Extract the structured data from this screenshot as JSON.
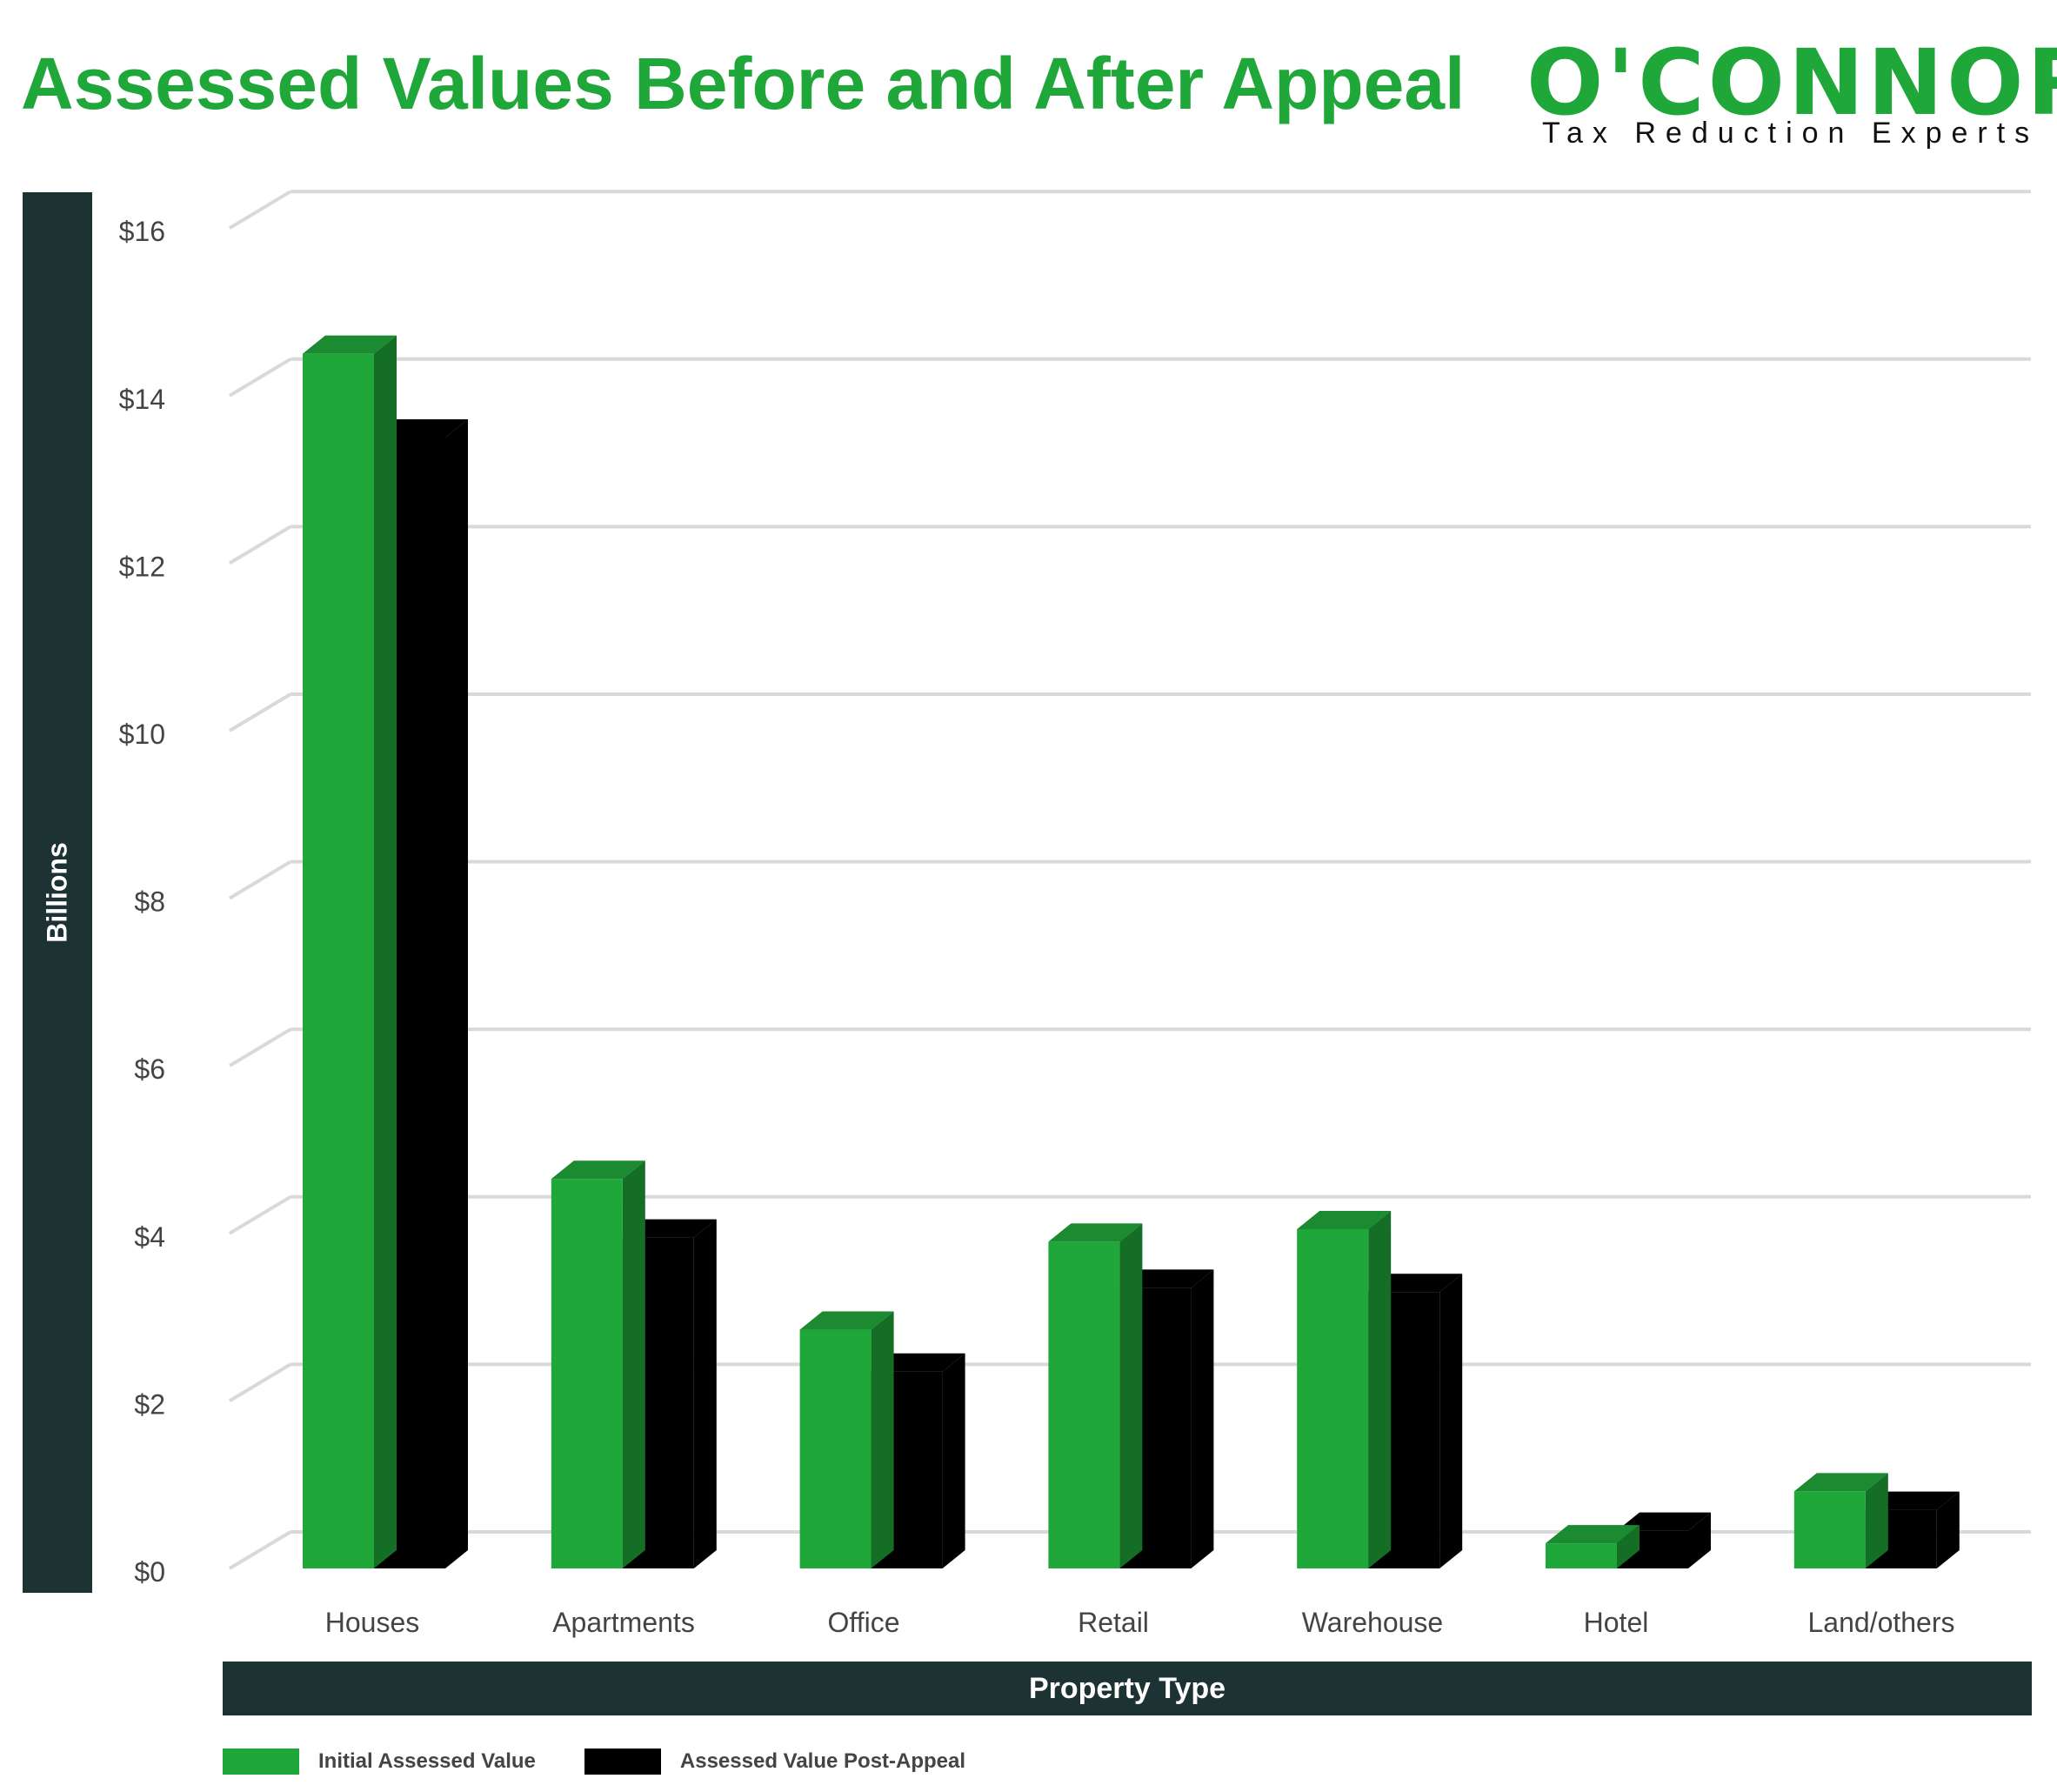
{
  "title": "Assessed Values Before and After Appeal",
  "logo": {
    "name": "O'CONNOR",
    "tagline": "Tax Reduction Experts"
  },
  "colors": {
    "initial": "#1fa73a",
    "initial_top": "#1b8a30",
    "initial_side": "#146e25",
    "post": "#000000",
    "grid": "#d9d9d9",
    "axis_band": "#1c3233"
  },
  "chart_data": {
    "type": "bar",
    "ylabel": "Billions",
    "xlabel": "Property Type",
    "ylim": [
      0,
      16
    ],
    "yticks": [
      "$0",
      "$2",
      "$4",
      "$6",
      "$8",
      "$10",
      "$12",
      "$14",
      "$16"
    ],
    "categories": [
      "Houses",
      "Apartments",
      "Office",
      "Retail",
      "Warehouse",
      "Hotel",
      "Land/others"
    ],
    "series": [
      {
        "name": "Initial Assessed Value",
        "values": [
          14.5,
          4.65,
          2.85,
          3.9,
          4.05,
          0.3,
          0.92
        ]
      },
      {
        "name": "Assessed Value Post-Appeal",
        "values": [
          13.5,
          3.95,
          2.35,
          3.35,
          3.3,
          0.45,
          0.7
        ]
      }
    ],
    "grid": true,
    "legend_position": "bottom-left"
  }
}
